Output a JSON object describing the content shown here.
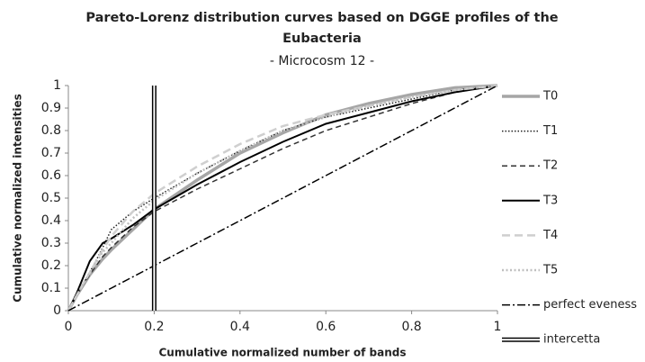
{
  "chart_data": {
    "type": "line",
    "title": [
      "Pareto-Lorenz distribution curves based on DGGE profiles of the",
      "Eubacteria"
    ],
    "subtitle": "- Microcosm 12 -",
    "x_label": "Cumulative normalized number of bands",
    "y_label": "Cumulative normalized intensities",
    "x": [
      0,
      0.02,
      0.05,
      0.08,
      0.1,
      0.15,
      0.2,
      0.3,
      0.4,
      0.5,
      0.6,
      0.7,
      0.8,
      0.9,
      1
    ],
    "series": [
      {
        "name": "T0",
        "color": "#a6a6a6",
        "values": [
          0,
          0.07,
          0.16,
          0.23,
          0.27,
          0.36,
          0.45,
          0.58,
          0.7,
          0.79,
          0.87,
          0.92,
          0.96,
          0.99,
          1
        ]
      },
      {
        "name": "T1",
        "color": "#222222",
        "values": [
          0,
          0.07,
          0.17,
          0.28,
          0.36,
          0.44,
          0.5,
          0.61,
          0.71,
          0.8,
          0.86,
          0.9,
          0.94,
          0.98,
          1
        ]
      },
      {
        "name": "T2",
        "color": "#333333",
        "values": [
          0,
          0.07,
          0.16,
          0.24,
          0.28,
          0.37,
          0.44,
          0.54,
          0.63,
          0.72,
          0.8,
          0.86,
          0.92,
          0.97,
          1
        ]
      },
      {
        "name": "T3",
        "color": "#000000",
        "values": [
          0,
          0.08,
          0.22,
          0.3,
          0.32,
          0.38,
          0.45,
          0.56,
          0.66,
          0.75,
          0.83,
          0.88,
          0.93,
          0.97,
          1
        ]
      },
      {
        "name": "T4",
        "color": "#cfcfcf",
        "values": [
          0,
          0.07,
          0.17,
          0.27,
          0.33,
          0.44,
          0.52,
          0.64,
          0.74,
          0.82,
          0.87,
          0.91,
          0.95,
          0.98,
          1
        ]
      },
      {
        "name": "T5",
        "color": "#c0c0c0",
        "values": [
          0,
          0.07,
          0.17,
          0.26,
          0.3,
          0.41,
          0.49,
          0.61,
          0.71,
          0.8,
          0.86,
          0.91,
          0.95,
          0.98,
          1
        ]
      },
      {
        "name": "perfect eveness",
        "color": "#000000",
        "values": [
          0,
          0.02,
          0.05,
          0.08,
          0.1,
          0.15,
          0.2,
          0.3,
          0.4,
          0.5,
          0.6,
          0.7,
          0.8,
          0.9,
          1
        ]
      },
      {
        "name": "intercetta",
        "color": "#000000",
        "x": [
          0.2,
          0.2
        ],
        "values": [
          0,
          1
        ]
      }
    ],
    "xlim": [
      0,
      1
    ],
    "xticks": [
      0,
      0.2,
      0.4,
      0.6,
      0.8,
      1
    ],
    "ylim": [
      0,
      1
    ],
    "yticks": [
      0,
      0.1,
      0.2,
      0.3,
      0.4,
      0.5,
      0.6,
      0.7,
      0.8,
      0.9,
      1
    ],
    "grid": false,
    "legend": "right"
  }
}
